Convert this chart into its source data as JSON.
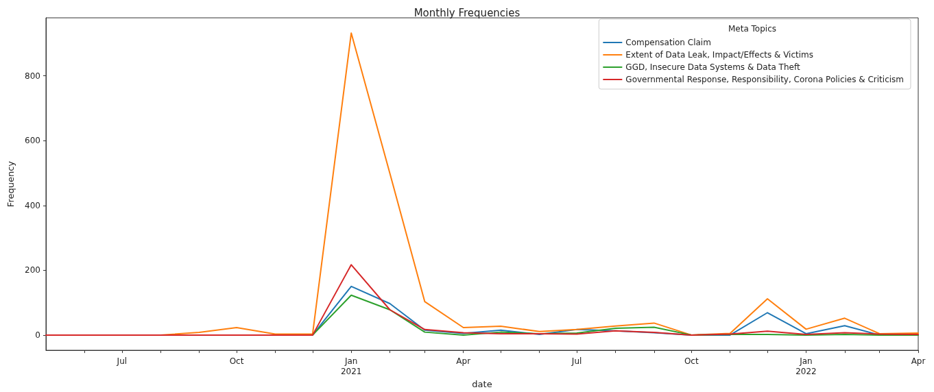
{
  "chart_data": {
    "type": "line",
    "title": "Monthly Frequencies",
    "xlabel": "date",
    "ylabel": "Frequency",
    "legend_title": "Meta Topics",
    "legend": "top right",
    "grid": false,
    "marker": "none",
    "line_style": "solid",
    "x": [
      "2020-05",
      "2020-06",
      "2020-07",
      "2020-08",
      "2020-09",
      "2020-10",
      "2020-11",
      "2020-12",
      "2021-01",
      "2021-02",
      "2021-03",
      "2021-04",
      "2021-05",
      "2021-06",
      "2021-07",
      "2021-08",
      "2021-09",
      "2021-10",
      "2021-11",
      "2021-12",
      "2022-01",
      "2022-02",
      "2022-03",
      "2022-04"
    ],
    "xlim": [
      "2020-05",
      "2022-04"
    ],
    "xticks": [
      {
        "value": "2020-06",
        "label": null
      },
      {
        "value": "2020-07",
        "label": "Jul"
      },
      {
        "value": "2020-08",
        "label": null
      },
      {
        "value": "2020-09",
        "label": null
      },
      {
        "value": "2020-10",
        "label": "Oct"
      },
      {
        "value": "2020-11",
        "label": null
      },
      {
        "value": "2020-12",
        "label": null
      },
      {
        "value": "2021-01",
        "label": "Jan\n2021"
      },
      {
        "value": "2021-02",
        "label": null
      },
      {
        "value": "2021-03",
        "label": null
      },
      {
        "value": "2021-04",
        "label": "Apr"
      },
      {
        "value": "2021-05",
        "label": null
      },
      {
        "value": "2021-06",
        "label": null
      },
      {
        "value": "2021-07",
        "label": "Jul"
      },
      {
        "value": "2021-08",
        "label": null
      },
      {
        "value": "2021-09",
        "label": null
      },
      {
        "value": "2021-10",
        "label": "Oct"
      },
      {
        "value": "2021-11",
        "label": null
      },
      {
        "value": "2021-12",
        "label": null
      },
      {
        "value": "2022-01",
        "label": "Jan\n2022"
      },
      {
        "value": "2022-02",
        "label": null
      },
      {
        "value": "2022-03",
        "label": null
      },
      {
        "value": "2022-04",
        "label": "Apr"
      }
    ],
    "ylim": [
      -47,
      979
    ],
    "yticks": [
      0,
      200,
      400,
      600,
      800
    ],
    "series": [
      {
        "name": "Compensation Claim",
        "color": "#1f77b4",
        "values": [
          null,
          null,
          null,
          null,
          null,
          null,
          0,
          0,
          150,
          97,
          15,
          5,
          15,
          2,
          17,
          13,
          7,
          0,
          0,
          69,
          4,
          29,
          0,
          0
        ]
      },
      {
        "name": "Extent of Data Leak, Impact/Effects & Victims",
        "color": "#ff7f0e",
        "values": [
          null,
          null,
          0,
          0,
          8,
          23,
          3,
          3,
          932,
          499,
          103,
          23,
          27,
          11,
          17,
          28,
          37,
          0,
          5,
          112,
          18,
          52,
          4,
          6
        ]
      },
      {
        "name": "GGD, Insecure Data Systems & Data Theft",
        "color": "#2ca02c",
        "values": [
          null,
          null,
          null,
          null,
          null,
          null,
          0,
          0,
          123,
          78,
          9,
          0,
          9,
          4,
          6,
          21,
          24,
          0,
          2,
          2,
          0,
          2,
          0,
          0
        ]
      },
      {
        "name": "Governmental Response, Responsibility, Corona Policies & Criticism",
        "color": "#d62728",
        "values": [
          0,
          0,
          0,
          0,
          0,
          0,
          0,
          0,
          217,
          78,
          17,
          7,
          4,
          4,
          3,
          13,
          8,
          0,
          3,
          12,
          2,
          7,
          3,
          2
        ]
      }
    ]
  }
}
